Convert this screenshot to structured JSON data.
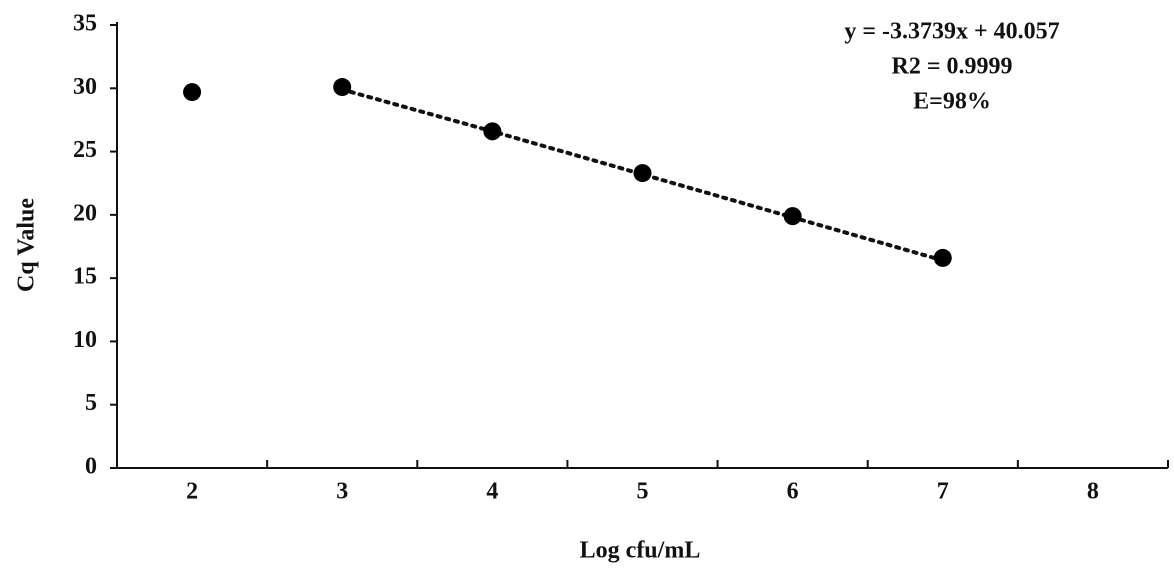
{
  "chart_data": {
    "type": "scatter",
    "annotations": [
      "y = -3.3739x + 40.057",
      "R2 = 0.9999",
      "E=98%"
    ],
    "x_label": "Log cfu/mL",
    "y_label": "Cq Value",
    "categories": [
      "2",
      "3",
      "4",
      "5",
      "6",
      "7",
      "8"
    ],
    "values": [
      29.7,
      30.1,
      26.6,
      23.3,
      19.9,
      16.6,
      null
    ],
    "trendline": [
      null,
      29.9,
      26.6,
      23.2,
      19.8,
      16.4,
      null
    ],
    "color": "#000000",
    "ylim": [
      0,
      35
    ],
    "yticks": [
      0,
      5,
      10,
      15,
      20,
      25,
      30,
      35
    ]
  }
}
